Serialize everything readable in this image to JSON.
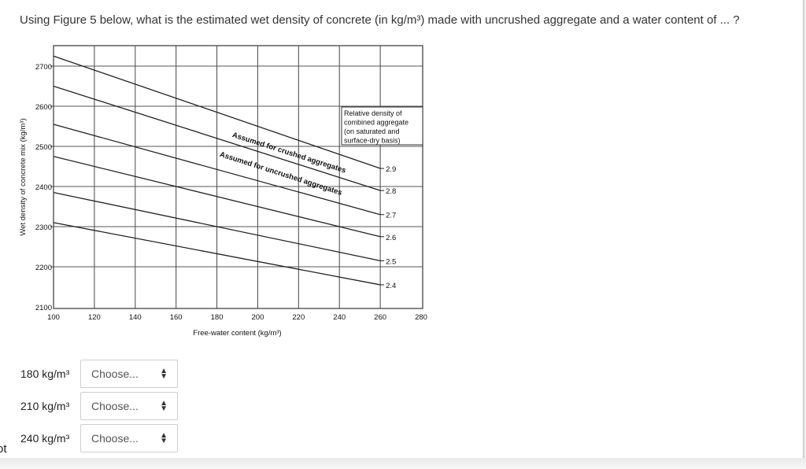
{
  "question": "Using Figure 5 below, what is the estimated wet density of concrete (in kg/m³) made with uncrushed aggregate and a water content of ... ?",
  "rows": [
    {
      "label": "180 kg/m³",
      "select": "Choose..."
    },
    {
      "label": "210 kg/m³",
      "select": "Choose..."
    },
    {
      "label": "240 kg/m³",
      "select": "Choose..."
    }
  ],
  "edge_text": "ot",
  "chart_data": {
    "type": "line",
    "xlabel": "Free-water content (kg/m³)",
    "ylabel": "Wet density of concrete mix (kg/m³)",
    "xlim": [
      100,
      280
    ],
    "ylim": [
      2100,
      2700
    ],
    "x_ticks": [
      100,
      120,
      140,
      160,
      180,
      200,
      220,
      240,
      260,
      280
    ],
    "y_ticks": [
      2100,
      2200,
      2300,
      2400,
      2500,
      2600,
      2700
    ],
    "grid": true,
    "series": [
      {
        "name": "2.9",
        "x": [
          100,
          260
        ],
        "y": [
          2725,
          2445
        ]
      },
      {
        "name": "2.8",
        "x": [
          100,
          260
        ],
        "y": [
          2650,
          2390
        ]
      },
      {
        "name": "2.7",
        "x": [
          100,
          260
        ],
        "y": [
          2555,
          2330
        ]
      },
      {
        "name": "2.6",
        "x": [
          100,
          260
        ],
        "y": [
          2475,
          2275
        ]
      },
      {
        "name": "2.5",
        "x": [
          100,
          260
        ],
        "y": [
          2385,
          2215
        ]
      },
      {
        "name": "2.4",
        "x": [
          100,
          260
        ],
        "y": [
          2310,
          2155
        ]
      }
    ],
    "legend_box": [
      "Relative density of",
      "combined aggregate",
      "(on saturated and",
      "surface-dry basis)"
    ],
    "annotations": [
      "Assumed for crushed aggregates",
      "Assumed for uncrushed aggregates"
    ]
  }
}
